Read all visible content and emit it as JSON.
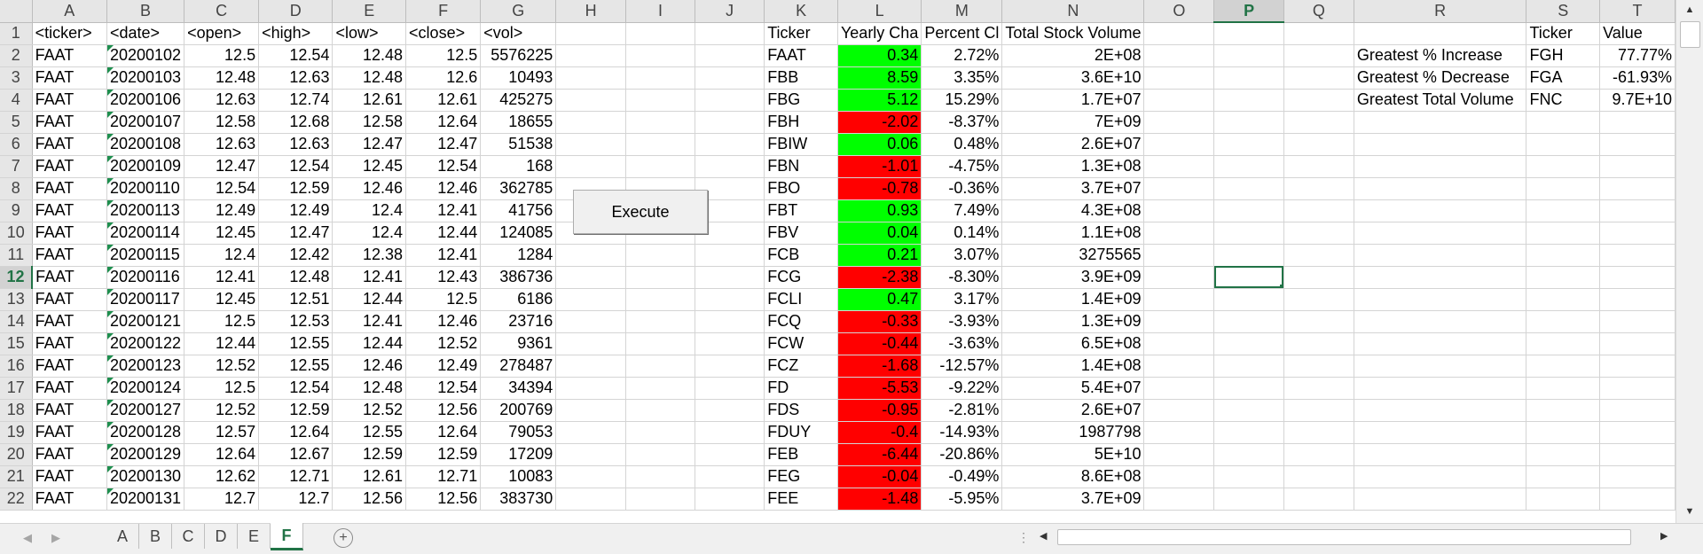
{
  "columns": [
    "A",
    "B",
    "C",
    "D",
    "E",
    "F",
    "G",
    "H",
    "I",
    "J",
    "K",
    "L",
    "M",
    "N",
    "O",
    "P",
    "Q",
    "R",
    "S",
    "T"
  ],
  "selected_column": "P",
  "selected_row": 12,
  "rows": [
    {
      "n": "1",
      "A": "<ticker>",
      "B": "<date>",
      "C": "<open>",
      "D": "<high>",
      "E": "<low>",
      "F": "<close>",
      "G": "<vol>",
      "K": "Ticker",
      "L": "Yearly Cha",
      "M": "Percent Cl",
      "N": "Total Stock Volume",
      "S": "Ticker",
      "T": "Value"
    },
    {
      "n": "2",
      "A": "FAAT",
      "B": "20200102",
      "C": "12.5",
      "D": "12.54",
      "E": "12.48",
      "F": "12.5",
      "G": "5576225",
      "K": "FAAT",
      "L": "0.34",
      "M": "2.72%",
      "N": "2E+08",
      "R": "Greatest % Increase",
      "S": "FGH",
      "T": "77.77%"
    },
    {
      "n": "3",
      "A": "FAAT",
      "B": "20200103",
      "C": "12.48",
      "D": "12.63",
      "E": "12.48",
      "F": "12.6",
      "G": "10493",
      "K": "FBB",
      "L": "8.59",
      "M": "3.35%",
      "N": "3.6E+10",
      "R": "Greatest % Decrease",
      "S": "FGA",
      "T": "-61.93%"
    },
    {
      "n": "4",
      "A": "FAAT",
      "B": "20200106",
      "C": "12.63",
      "D": "12.74",
      "E": "12.61",
      "F": "12.61",
      "G": "425275",
      "K": "FBG",
      "L": "5.12",
      "M": "15.29%",
      "N": "1.7E+07",
      "R": "Greatest Total Volume",
      "S": "FNC",
      "T": "9.7E+10"
    },
    {
      "n": "5",
      "A": "FAAT",
      "B": "20200107",
      "C": "12.58",
      "D": "12.68",
      "E": "12.58",
      "F": "12.64",
      "G": "18655",
      "K": "FBH",
      "L": "-2.02",
      "M": "-8.37%",
      "N": "7E+09"
    },
    {
      "n": "6",
      "A": "FAAT",
      "B": "20200108",
      "C": "12.63",
      "D": "12.63",
      "E": "12.47",
      "F": "12.47",
      "G": "51538",
      "K": "FBIW",
      "L": "0.06",
      "M": "0.48%",
      "N": "2.6E+07"
    },
    {
      "n": "7",
      "A": "FAAT",
      "B": "20200109",
      "C": "12.47",
      "D": "12.54",
      "E": "12.45",
      "F": "12.54",
      "G": "168",
      "K": "FBN",
      "L": "-1.01",
      "M": "-4.75%",
      "N": "1.3E+08"
    },
    {
      "n": "8",
      "A": "FAAT",
      "B": "20200110",
      "C": "12.54",
      "D": "12.59",
      "E": "12.46",
      "F": "12.46",
      "G": "362785",
      "K": "FBO",
      "L": "-0.78",
      "M": "-0.36%",
      "N": "3.7E+07"
    },
    {
      "n": "9",
      "A": "FAAT",
      "B": "20200113",
      "C": "12.49",
      "D": "12.49",
      "E": "12.4",
      "F": "12.41",
      "G": "41756",
      "K": "FBT",
      "L": "0.93",
      "M": "7.49%",
      "N": "4.3E+08"
    },
    {
      "n": "10",
      "A": "FAAT",
      "B": "20200114",
      "C": "12.45",
      "D": "12.47",
      "E": "12.4",
      "F": "12.44",
      "G": "124085",
      "K": "FBV",
      "L": "0.04",
      "M": "0.14%",
      "N": "1.1E+08"
    },
    {
      "n": "11",
      "A": "FAAT",
      "B": "20200115",
      "C": "12.4",
      "D": "12.42",
      "E": "12.38",
      "F": "12.41",
      "G": "1284",
      "K": "FCB",
      "L": "0.21",
      "M": "3.07%",
      "N": "3275565"
    },
    {
      "n": "12",
      "A": "FAAT",
      "B": "20200116",
      "C": "12.41",
      "D": "12.48",
      "E": "12.41",
      "F": "12.43",
      "G": "386736",
      "K": "FCG",
      "L": "-2.38",
      "M": "-8.30%",
      "N": "3.9E+09"
    },
    {
      "n": "13",
      "A": "FAAT",
      "B": "20200117",
      "C": "12.45",
      "D": "12.51",
      "E": "12.44",
      "F": "12.5",
      "G": "6186",
      "K": "FCLI",
      "L": "0.47",
      "M": "3.17%",
      "N": "1.4E+09"
    },
    {
      "n": "14",
      "A": "FAAT",
      "B": "20200121",
      "C": "12.5",
      "D": "12.53",
      "E": "12.41",
      "F": "12.46",
      "G": "23716",
      "K": "FCQ",
      "L": "-0.33",
      "M": "-3.93%",
      "N": "1.3E+09"
    },
    {
      "n": "15",
      "A": "FAAT",
      "B": "20200122",
      "C": "12.44",
      "D": "12.55",
      "E": "12.44",
      "F": "12.52",
      "G": "9361",
      "K": "FCW",
      "L": "-0.44",
      "M": "-3.63%",
      "N": "6.5E+08"
    },
    {
      "n": "16",
      "A": "FAAT",
      "B": "20200123",
      "C": "12.52",
      "D": "12.55",
      "E": "12.46",
      "F": "12.49",
      "G": "278487",
      "K": "FCZ",
      "L": "-1.68",
      "M": "-12.57%",
      "N": "1.4E+08"
    },
    {
      "n": "17",
      "A": "FAAT",
      "B": "20200124",
      "C": "12.5",
      "D": "12.54",
      "E": "12.48",
      "F": "12.54",
      "G": "34394",
      "K": "FD",
      "L": "-5.53",
      "M": "-9.22%",
      "N": "5.4E+07"
    },
    {
      "n": "18",
      "A": "FAAT",
      "B": "20200127",
      "C": "12.52",
      "D": "12.59",
      "E": "12.52",
      "F": "12.56",
      "G": "200769",
      "K": "FDS",
      "L": "-0.95",
      "M": "-2.81%",
      "N": "2.6E+07"
    },
    {
      "n": "19",
      "A": "FAAT",
      "B": "20200128",
      "C": "12.57",
      "D": "12.64",
      "E": "12.55",
      "F": "12.64",
      "G": "79053",
      "K": "FDUY",
      "L": "-0.4",
      "M": "-14.93%",
      "N": "1987798"
    },
    {
      "n": "20",
      "A": "FAAT",
      "B": "20200129",
      "C": "12.64",
      "D": "12.67",
      "E": "12.59",
      "F": "12.59",
      "G": "17209",
      "K": "FEB",
      "L": "-6.44",
      "M": "-20.86%",
      "N": "5E+10"
    },
    {
      "n": "21",
      "A": "FAAT",
      "B": "20200130",
      "C": "12.62",
      "D": "12.71",
      "E": "12.61",
      "F": "12.71",
      "G": "10083",
      "K": "FEG",
      "L": "-0.04",
      "M": "-0.49%",
      "N": "8.6E+08"
    },
    {
      "n": "22",
      "A": "FAAT",
      "B": "20200131",
      "C": "12.7",
      "D": "12.7",
      "E": "12.56",
      "F": "12.56",
      "G": "383730",
      "K": "FEE",
      "L": "-1.48",
      "M": "-5.95%",
      "N": "3.7E+09"
    }
  ],
  "button": {
    "label": "Execute"
  },
  "sheet_tabs": [
    "A",
    "B",
    "C",
    "D",
    "E",
    "F"
  ],
  "active_tab": "F",
  "colors": {
    "positive_fill": "#00ff00",
    "negative_fill": "#ff0000",
    "accent": "#217346"
  },
  "icons": {
    "tab_prev": "chevron-left-icon",
    "tab_next": "chevron-right-icon",
    "add_sheet": "plus-circle-icon",
    "scroll_up": "triangle-up-icon",
    "scroll_down": "triangle-down-icon",
    "scroll_left": "triangle-left-icon",
    "scroll_right": "triangle-right-icon"
  }
}
